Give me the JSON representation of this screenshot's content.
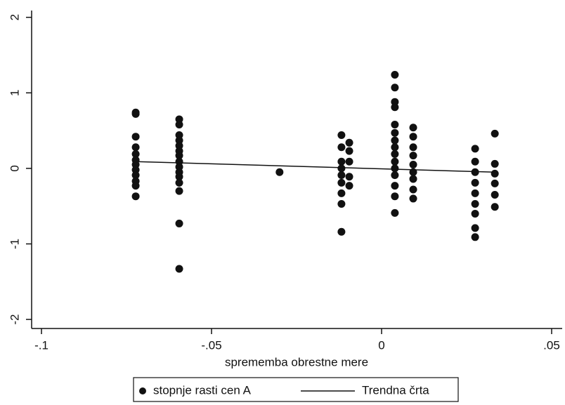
{
  "chart_data": {
    "type": "scatter",
    "x_label": "sprememba obrestne mere",
    "xlim": [
      -0.1029,
      0.0531
    ],
    "ylim": [
      -2.12,
      2.09
    ],
    "xticks": [
      {
        "value": -0.1,
        "label": "-.1"
      },
      {
        "value": -0.05,
        "label": "-.05"
      },
      {
        "value": 0,
        "label": "0"
      },
      {
        "value": 0.05,
        "label": ".05"
      }
    ],
    "yticks": [
      -2,
      -1,
      0,
      1,
      2
    ],
    "legend": "bottom",
    "series": [
      {
        "name": "stopnje rasti cen A",
        "color": "#111111",
        "type": "scatter",
        "x": [
          -0.0723,
          -0.0723,
          -0.0723,
          -0.0723,
          -0.0723,
          -0.0723,
          -0.0723,
          -0.0723,
          -0.0723,
          -0.0723,
          -0.0723,
          -0.0723,
          -0.0595,
          -0.0595,
          -0.0595,
          -0.0595,
          -0.0595,
          -0.0595,
          -0.0595,
          -0.0595,
          -0.0595,
          -0.0595,
          -0.0595,
          -0.0595,
          -0.0595,
          -0.0595,
          -0.0595,
          -0.03,
          -0.0118,
          -0.0118,
          -0.0118,
          -0.0118,
          -0.0118,
          -0.0118,
          -0.0118,
          -0.0118,
          -0.0118,
          -0.0095,
          -0.0095,
          -0.0095,
          -0.0095,
          -0.0095,
          0.0039,
          0.0039,
          0.0039,
          0.0039,
          0.0039,
          0.0039,
          0.0039,
          0.0039,
          0.0039,
          0.0039,
          0.0039,
          0.0039,
          0.0039,
          0.0039,
          0.0039,
          0.0093,
          0.0093,
          0.0093,
          0.0093,
          0.0093,
          0.0093,
          0.0093,
          0.0093,
          0.0093,
          0.0275,
          0.0275,
          0.0275,
          0.0275,
          0.0275,
          0.0275,
          0.0275,
          0.0275,
          0.0275,
          0.0333,
          0.0333,
          0.0333,
          0.0333,
          0.0333,
          0.0333
        ],
        "values": [
          0.74,
          0.72,
          0.42,
          0.28,
          0.19,
          0.11,
          0.05,
          -0.02,
          -0.09,
          -0.17,
          -0.23,
          -0.37,
          0.65,
          0.58,
          0.44,
          0.37,
          0.3,
          0.23,
          0.17,
          0.09,
          0.02,
          -0.05,
          -0.11,
          -0.19,
          -0.3,
          -0.73,
          -1.33,
          -0.05,
          0.44,
          0.28,
          0.09,
          0,
          -0.09,
          -0.19,
          -0.33,
          -0.47,
          -0.84,
          0.34,
          0.23,
          0.09,
          -0.11,
          -0.23,
          1.24,
          1.07,
          0.88,
          0.81,
          0.58,
          0.47,
          0.37,
          0.28,
          0.19,
          0.09,
          0,
          -0.09,
          -0.23,
          -0.37,
          -0.59,
          0.54,
          0.42,
          0.28,
          0.17,
          0.05,
          -0.05,
          -0.14,
          -0.28,
          -0.4,
          0.26,
          0.09,
          -0.05,
          -0.19,
          -0.33,
          -0.47,
          -0.6,
          -0.79,
          -0.91,
          0.46,
          0.06,
          -0.07,
          -0.2,
          -0.35,
          -0.51
        ]
      },
      {
        "name": "Trendna črta",
        "color": "#111111",
        "type": "line",
        "x": [
          -0.0723,
          0.0333
        ],
        "values": [
          0.09,
          -0.05
        ]
      }
    ]
  }
}
